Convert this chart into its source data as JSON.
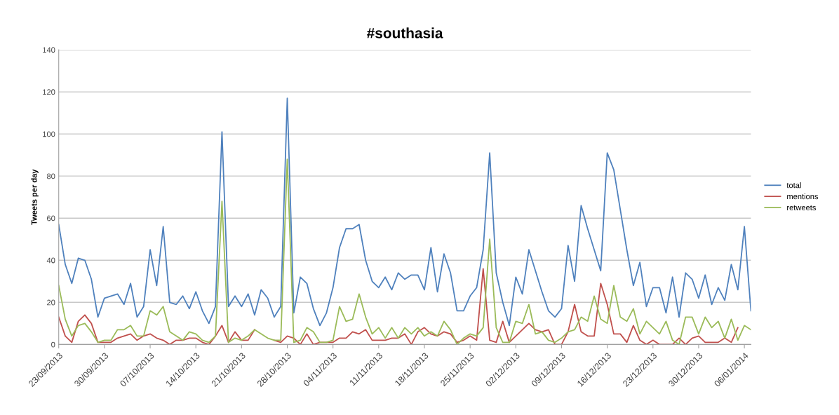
{
  "chart_data": {
    "type": "line",
    "title": "#southasia",
    "ylabel": "Tweets per day",
    "x": [
      "2013-09-23",
      "2013-09-24",
      "2013-09-25",
      "2013-09-26",
      "2013-09-27",
      "2013-09-28",
      "2013-09-29",
      "2013-09-30",
      "2013-10-01",
      "2013-10-02",
      "2013-10-03",
      "2013-10-04",
      "2013-10-05",
      "2013-10-06",
      "2013-10-07",
      "2013-10-08",
      "2013-10-09",
      "2013-10-10",
      "2013-10-11",
      "2013-10-12",
      "2013-10-13",
      "2013-10-14",
      "2013-10-15",
      "2013-10-16",
      "2013-10-17",
      "2013-10-18",
      "2013-10-19",
      "2013-10-20",
      "2013-10-21",
      "2013-10-22",
      "2013-10-23",
      "2013-10-24",
      "2013-10-25",
      "2013-10-26",
      "2013-10-27",
      "2013-10-28",
      "2013-10-29",
      "2013-10-30",
      "2013-10-31",
      "2013-11-01",
      "2013-11-02",
      "2013-11-03",
      "2013-11-04",
      "2013-11-05",
      "2013-11-06",
      "2013-11-07",
      "2013-11-08",
      "2013-11-09",
      "2013-11-10",
      "2013-11-11",
      "2013-11-12",
      "2013-11-13",
      "2013-11-14",
      "2013-11-15",
      "2013-11-16",
      "2013-11-17",
      "2013-11-18",
      "2013-11-19",
      "2013-11-20",
      "2013-11-21",
      "2013-11-22",
      "2013-11-23",
      "2013-11-24",
      "2013-11-25",
      "2013-11-26",
      "2013-11-27",
      "2013-11-28",
      "2013-11-29",
      "2013-11-30",
      "2013-12-01",
      "2013-12-02",
      "2013-12-03",
      "2013-12-04",
      "2013-12-05",
      "2013-12-06",
      "2013-12-07",
      "2013-12-08",
      "2013-12-09",
      "2013-12-10",
      "2013-12-11",
      "2013-12-12",
      "2013-12-13",
      "2013-12-14",
      "2013-12-15",
      "2013-12-16",
      "2013-12-17",
      "2013-12-18",
      "2013-12-19",
      "2013-12-20",
      "2013-12-21",
      "2013-12-22",
      "2013-12-23",
      "2013-12-24",
      "2013-12-25",
      "2013-12-26",
      "2013-12-27",
      "2013-12-28",
      "2013-12-29",
      "2013-12-30",
      "2013-12-31",
      "2014-01-01",
      "2014-01-02",
      "2014-01-03",
      "2014-01-04",
      "2014-01-05",
      "2014-01-06",
      "2014-01-07"
    ],
    "series": [
      {
        "name": "total",
        "color": "#4f81bd",
        "values": [
          57,
          38,
          29,
          41,
          40,
          31,
          13,
          22,
          23,
          24,
          19,
          29,
          13,
          18,
          45,
          28,
          56,
          20,
          19,
          23,
          17,
          25,
          16,
          10,
          18,
          101,
          18,
          23,
          18,
          24,
          14,
          26,
          22,
          13,
          18,
          117,
          15,
          32,
          29,
          17,
          9,
          15,
          27,
          46,
          55,
          55,
          57,
          40,
          30,
          27,
          32,
          26,
          34,
          31,
          33,
          33,
          26,
          46,
          25,
          43,
          34,
          16,
          16,
          23,
          27,
          45,
          91,
          34,
          20,
          9,
          32,
          24,
          45,
          35,
          25,
          16,
          13,
          17,
          47,
          30,
          66,
          55,
          45,
          35,
          91,
          83,
          64,
          45,
          28,
          39,
          18,
          27,
          27,
          15,
          32,
          13,
          34,
          31,
          22,
          33,
          19,
          27,
          21,
          38,
          26,
          56,
          16
        ]
      },
      {
        "name": "mentions",
        "color": "#c0504d",
        "values": [
          13,
          4,
          1,
          11,
          14,
          10,
          1,
          1,
          1,
          3,
          4,
          5,
          2,
          4,
          5,
          3,
          2,
          0,
          2,
          2,
          3,
          3,
          1,
          0,
          4,
          9,
          1,
          6,
          2,
          2,
          7,
          null,
          null,
          2,
          1,
          4,
          3,
          0,
          5,
          0,
          1,
          1,
          1,
          3,
          3,
          6,
          5,
          7,
          2,
          2,
          2,
          3,
          3,
          5,
          0,
          6,
          8,
          5,
          4,
          6,
          5,
          1,
          2,
          4,
          2,
          36,
          2,
          1,
          11,
          1,
          4,
          7,
          10,
          7,
          6,
          7,
          0,
          0,
          6,
          19,
          6,
          4,
          4,
          29,
          19,
          5,
          5,
          1,
          9,
          2,
          0,
          2,
          0,
          0,
          0,
          3,
          0,
          3,
          4,
          1,
          1,
          1,
          3,
          1,
          8,
          null,
          null
        ]
      },
      {
        "name": "retweets",
        "color": "#9bbb59",
        "values": [
          28,
          12,
          4,
          9,
          10,
          6,
          1,
          2,
          2,
          7,
          7,
          9,
          4,
          4,
          16,
          14,
          18,
          6,
          4,
          2,
          6,
          5,
          2,
          1,
          4,
          68,
          1,
          3,
          2,
          4,
          7,
          5,
          3,
          2,
          2,
          88,
          1,
          2,
          8,
          6,
          1,
          1,
          2,
          18,
          11,
          12,
          24,
          13,
          5,
          8,
          3,
          8,
          3,
          8,
          5,
          8,
          4,
          6,
          4,
          11,
          7,
          0,
          3,
          5,
          4,
          8,
          50,
          8,
          1,
          1,
          11,
          10,
          19,
          5,
          6,
          2,
          1,
          3,
          6,
          7,
          13,
          11,
          23,
          12,
          10,
          28,
          13,
          11,
          17,
          5,
          11,
          8,
          5,
          11,
          2,
          0,
          13,
          13,
          5,
          13,
          8,
          11,
          3,
          12,
          2,
          9,
          7
        ]
      }
    ],
    "xlim": [
      "2013-09-23",
      "2014-01-07"
    ],
    "xticks": [
      {
        "value": "2013-09-23",
        "label": "23/09/2013"
      },
      {
        "value": "2013-09-30",
        "label": "30/09/2013"
      },
      {
        "value": "2013-10-07",
        "label": "07/10/2013"
      },
      {
        "value": "2013-10-14",
        "label": "14/10/2013"
      },
      {
        "value": "2013-10-21",
        "label": "21/10/2013"
      },
      {
        "value": "2013-10-28",
        "label": "28/10/2013"
      },
      {
        "value": "2013-11-04",
        "label": "04/11/2013"
      },
      {
        "value": "2013-11-11",
        "label": "11/11/2013"
      },
      {
        "value": "2013-11-18",
        "label": "18/11/2013"
      },
      {
        "value": "2013-11-25",
        "label": "25/11/2013"
      },
      {
        "value": "2013-12-02",
        "label": "02/12/2013"
      },
      {
        "value": "2013-12-09",
        "label": "09/12/2013"
      },
      {
        "value": "2013-12-16",
        "label": "16/12/2013"
      },
      {
        "value": "2013-12-23",
        "label": "23/12/2013"
      },
      {
        "value": "2013-12-30",
        "label": "30/12/2013"
      },
      {
        "value": "2014-01-06",
        "label": "06/01/2014"
      }
    ],
    "ylim": [
      0,
      140
    ],
    "yticks": [
      0,
      20,
      40,
      60,
      80,
      100,
      120,
      140
    ],
    "grid": "y",
    "legend": "right",
    "marker": "none",
    "line_style": "solid"
  }
}
